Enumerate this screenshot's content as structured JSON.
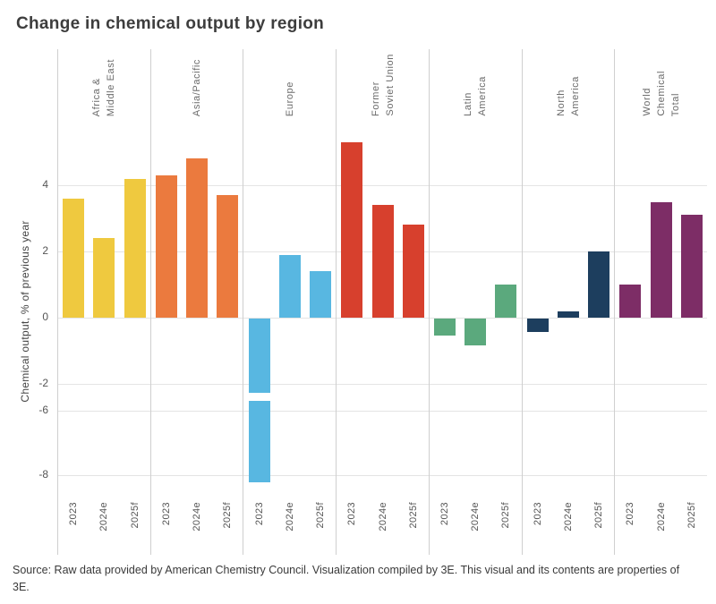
{
  "title": "Change in chemical output by region",
  "source": "Source: Raw data provided by American Chemistry Council. Visualization compiled by 3E. This visual and its contents are properties of 3E.",
  "chart_data": {
    "type": "bar",
    "title": "Change in chemical output by region",
    "xlabel": "",
    "ylabel": "Chemical output, % of previous year",
    "categories": [
      "2023",
      "2024e",
      "2025f"
    ],
    "yticks": [
      4,
      2,
      0,
      -2,
      -6,
      -8
    ],
    "axis_break": {
      "from": -2,
      "to": -6
    },
    "grid": true,
    "legend": "none",
    "groups": [
      {
        "name": "Africa & Middle East",
        "label_lines": [
          "Africa &",
          "Middle East"
        ],
        "color": "#EFC93F",
        "values": [
          3.6,
          2.4,
          4.2
        ]
      },
      {
        "name": "Asia/Pacific",
        "label_lines": [
          "Asia/Pacific"
        ],
        "color": "#EB7A3E",
        "values": [
          4.3,
          4.8,
          3.7
        ]
      },
      {
        "name": "Europe",
        "label_lines": [
          "Europe"
        ],
        "color": "#58B7E1",
        "values": [
          -8.2,
          1.9,
          1.4
        ]
      },
      {
        "name": "Former Soviet Union",
        "label_lines": [
          "Former",
          "Soviet Union"
        ],
        "color": "#D7402D",
        "values": [
          5.3,
          3.4,
          2.8
        ]
      },
      {
        "name": "Latin America",
        "label_lines": [
          "Latin",
          "America"
        ],
        "color": "#5BA97D",
        "values": [
          -0.5,
          -0.8,
          1.0
        ]
      },
      {
        "name": "North America",
        "label_lines": [
          "North",
          "America"
        ],
        "color": "#1D3E5E",
        "values": [
          -0.4,
          0.2,
          2.0
        ]
      },
      {
        "name": "World Chemical Total",
        "label_lines": [
          "World",
          "Chemical",
          "Total"
        ],
        "color": "#7D2D66",
        "values": [
          1.0,
          3.5,
          3.1
        ]
      }
    ]
  }
}
